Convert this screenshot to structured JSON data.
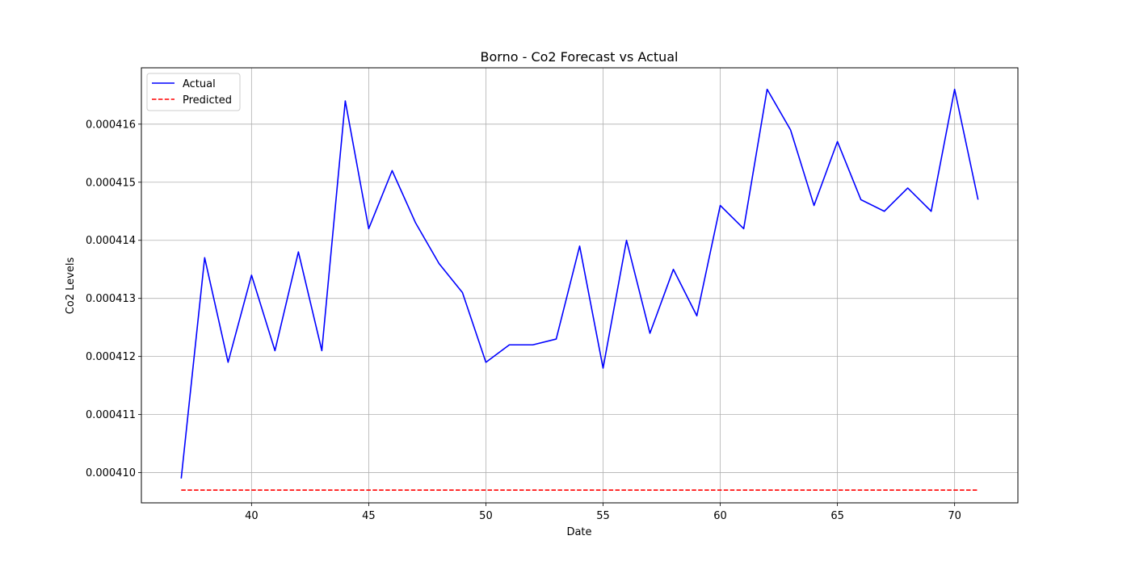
{
  "chart_data": {
    "type": "line",
    "title": "Borno - Co2 Forecast vs Actual",
    "xlabel": "Date",
    "ylabel": "Co2 Levels",
    "xlim": [
      35.3,
      72.7
    ],
    "ylim": [
      0.00040948,
      0.00041697
    ],
    "xticks": [
      40,
      45,
      50,
      55,
      60,
      65,
      70
    ],
    "xtick_labels": [
      "40",
      "45",
      "50",
      "55",
      "60",
      "65",
      "70"
    ],
    "yticks": [
      0.00041,
      0.000411,
      0.000412,
      0.000413,
      0.000414,
      0.000415,
      0.000416
    ],
    "ytick_labels": [
      "0.000410",
      "0.000411",
      "0.000412",
      "0.000413",
      "0.000414",
      "0.000415",
      "0.000416"
    ],
    "grid": true,
    "legend_position": "upper left",
    "x": [
      37,
      38,
      39,
      40,
      41,
      42,
      43,
      44,
      45,
      46,
      47,
      48,
      49,
      50,
      51,
      52,
      53,
      54,
      55,
      56,
      57,
      58,
      59,
      60,
      61,
      62,
      63,
      64,
      65,
      66,
      67,
      68,
      69,
      70,
      71
    ],
    "series": [
      {
        "name": "Actual",
        "color": "#0000ff",
        "style": "solid",
        "values": [
          0.0004099,
          0.0004137,
          0.0004119,
          0.0004134,
          0.0004121,
          0.0004138,
          0.0004121,
          0.0004164,
          0.0004142,
          0.0004152,
          0.0004143,
          0.0004136,
          0.0004131,
          0.0004119,
          0.0004122,
          0.0004122,
          0.0004123,
          0.0004139,
          0.0004118,
          0.000414,
          0.0004124,
          0.0004135,
          0.0004127,
          0.0004146,
          0.0004142,
          0.0004166,
          0.0004159,
          0.0004146,
          0.0004157,
          0.0004147,
          0.0004145,
          0.0004149,
          0.0004145,
          0.0004166,
          0.0004147
        ]
      },
      {
        "name": "Predicted",
        "color": "#ff0000",
        "style": "dashed",
        "values": [
          0.0004097,
          0.0004097,
          0.0004097,
          0.0004097,
          0.0004097,
          0.0004097,
          0.0004097,
          0.0004097,
          0.0004097,
          0.0004097,
          0.0004097,
          0.0004097,
          0.0004097,
          0.0004097,
          0.0004097,
          0.0004097,
          0.0004097,
          0.0004097,
          0.0004097,
          0.0004097,
          0.0004097,
          0.0004097,
          0.0004097,
          0.0004097,
          0.0004097,
          0.0004097,
          0.0004097,
          0.0004097,
          0.0004097,
          0.0004097,
          0.0004097,
          0.0004097,
          0.0004097,
          0.0004097,
          0.0004097
        ]
      }
    ]
  }
}
